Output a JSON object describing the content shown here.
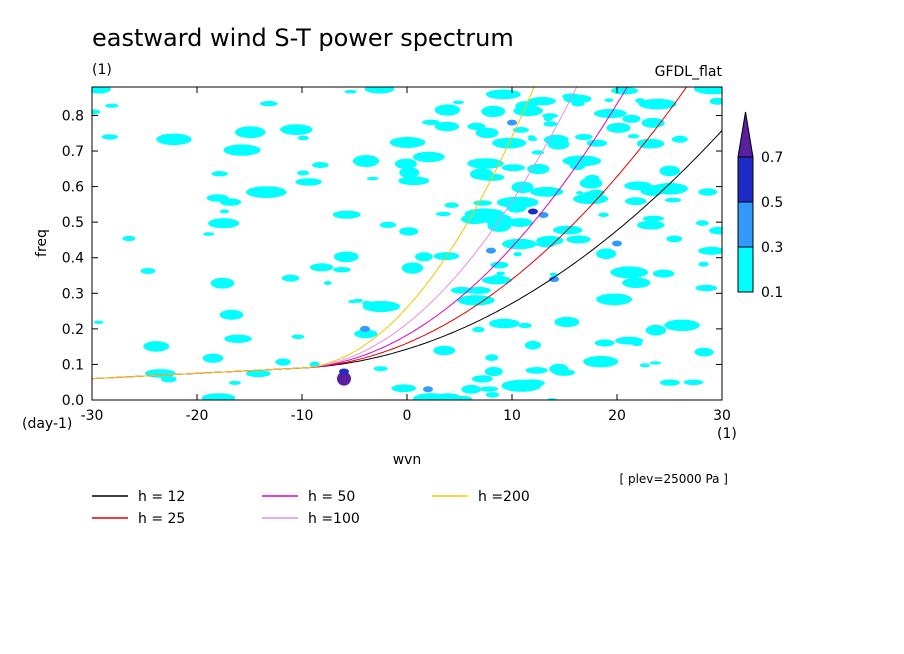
{
  "chart_data": {
    "type": "heatmap",
    "title": "eastward wind S-T power spectrum",
    "subtitle_left": "(1)",
    "subtitle_right": "GFDL_flat",
    "xlabel": "wvn",
    "ylabel": "freq",
    "x_unit": "(1)",
    "y_unit": "(day-1)",
    "xlim": [
      -30,
      30
    ],
    "ylim": [
      0,
      0.88
    ],
    "x_ticks": [
      "-30",
      "-20",
      "-10",
      "0",
      "10",
      "20",
      "30"
    ],
    "x_tick_values": [
      -30,
      -20,
      -10,
      0,
      10,
      20,
      30
    ],
    "y_ticks": [
      "0.0",
      "0.1",
      "0.2",
      "0.3",
      "0.4",
      "0.5",
      "0.6",
      "0.7",
      "0.8"
    ],
    "y_tick_values": [
      0,
      0.1,
      0.2,
      0.3,
      0.4,
      0.5,
      0.6,
      0.7,
      0.8
    ],
    "annotation": "[ plev=25000 Pa ]",
    "colorbar": {
      "levels": [
        "0.1",
        "0.3",
        "0.5",
        "0.7"
      ],
      "colors": [
        "#00ffff",
        "#3399ff",
        "#1e2bc8",
        "#5a1ea0"
      ]
    },
    "series": [
      {
        "name": "h = 12",
        "h": 12,
        "color": "#000000"
      },
      {
        "name": "h = 25",
        "h": 25,
        "color": "#e00000"
      },
      {
        "name": "h = 50",
        "h": 50,
        "color": "#e000c0"
      },
      {
        "name": "h =100",
        "h": 100,
        "color": "#e88ee8"
      },
      {
        "name": "h =200",
        "h": 200,
        "color": "#f0c800"
      }
    ],
    "features": [
      {
        "x": -6,
        "y": 0.06,
        "level": 3
      },
      {
        "x": -6,
        "y": 0.08,
        "level": 2
      },
      {
        "x": 12,
        "y": 0.53,
        "level": 2
      },
      {
        "x": 13,
        "y": 0.52,
        "level": 1
      },
      {
        "x": 10,
        "y": 0.78,
        "level": 1
      },
      {
        "x": 14,
        "y": 0.34,
        "level": 1
      },
      {
        "x": 20,
        "y": 0.44,
        "level": 1
      },
      {
        "x": 2,
        "y": 0.03,
        "level": 1
      },
      {
        "x": -4,
        "y": 0.2,
        "level": 1
      },
      {
        "x": 8,
        "y": 0.42,
        "level": 1
      }
    ]
  }
}
